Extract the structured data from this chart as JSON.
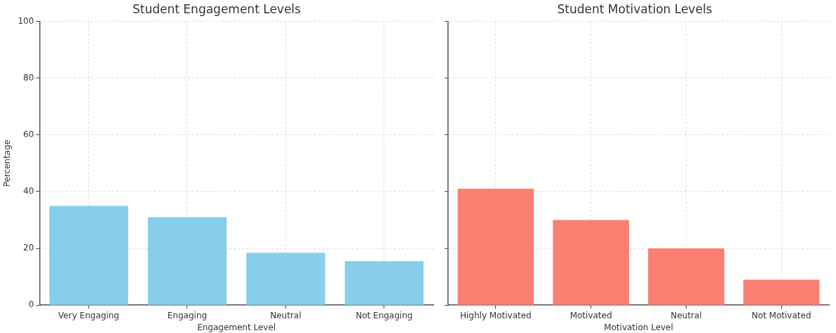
{
  "chart_data": [
    {
      "type": "bar",
      "title": "Student Engagement Levels",
      "xlabel": "Engagement Level",
      "ylabel": "Percentage",
      "categories": [
        "Very Engaging",
        "Engaging",
        "Neutral",
        "Not Engaging"
      ],
      "values": [
        35,
        31,
        18.5,
        15.5
      ],
      "color": "#87ceeb",
      "ylim": [
        0,
        100
      ],
      "yticks": [
        0,
        20,
        40,
        60,
        80,
        100
      ],
      "grid": true,
      "legend": false
    },
    {
      "type": "bar",
      "title": "Student Motivation Levels",
      "xlabel": "Motivation Level",
      "categories": [
        "Highly Motivated",
        "Motivated",
        "Neutral",
        "Not Motivated"
      ],
      "values": [
        41,
        30,
        20,
        9
      ],
      "color": "#fa8072",
      "ylim": [
        0,
        100
      ],
      "yticks": [
        0,
        20,
        40,
        60,
        80,
        100
      ],
      "grid": true,
      "legend": false,
      "tick_labels": "x"
    }
  ]
}
